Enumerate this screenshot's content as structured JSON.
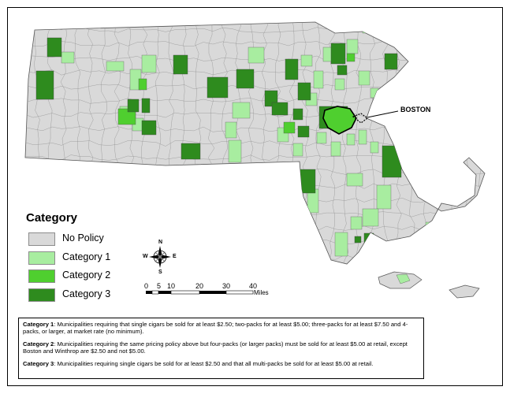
{
  "legend": {
    "title": "Category",
    "items": [
      {
        "label": "No Policy",
        "color": "#d9d9d9"
      },
      {
        "label": "Category 1",
        "color": "#a8eda0"
      },
      {
        "label": "Category 2",
        "color": "#4fcf2f"
      },
      {
        "label": "Category 3",
        "color": "#2e8b1e"
      }
    ]
  },
  "city_label": "BOSTON",
  "compass": {
    "n": "N",
    "s": "S",
    "e": "E",
    "w": "W"
  },
  "scale_bar": {
    "ticks": [
      "0",
      "5",
      "10",
      "20",
      "30",
      "40"
    ],
    "unit": "Miles"
  },
  "notes": [
    {
      "term": "Category 1",
      "text": ":  Municipalities requiring that single cigars be sold for at least $2.50; two-packs for at least $5.00; three-packs for at least $7.50 and 4-packs, or larger, at market rate (no minimum)."
    },
    {
      "term": "Category 2",
      "text": ":  Municipalities requiring the same pricing policy above but four-packs (or larger packs) must be sold for at least $5.00 at retail, except Boston and Winthrop are $2.50 and not $5.00."
    },
    {
      "term": "Category 3",
      "text": ":  Municipalities requiring single cigars be sold for at least $2.50 and that all multi-packs be sold for at least $5.00 at retail."
    }
  ]
}
